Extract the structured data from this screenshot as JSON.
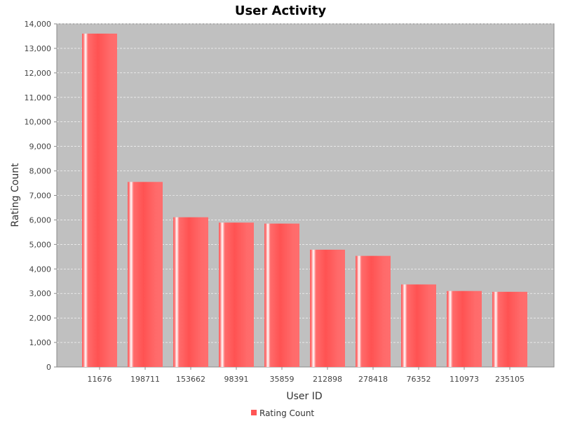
{
  "chart_data": {
    "type": "bar",
    "title": "User Activity",
    "xlabel": "User ID",
    "ylabel": "Rating Count",
    "categories": [
      "11676",
      "198711",
      "153662",
      "98391",
      "35859",
      "212898",
      "278418",
      "76352",
      "110973",
      "235105"
    ],
    "series": [
      {
        "name": "Rating Count",
        "values": [
          13602,
          7550,
          6109,
          5891,
          5850,
          4785,
          4533,
          3367,
          3100,
          3067
        ]
      }
    ],
    "ylim": [
      0,
      14000
    ],
    "yticks": [
      0,
      1000,
      2000,
      3000,
      4000,
      5000,
      6000,
      7000,
      8000,
      9000,
      10000,
      11000,
      12000,
      13000,
      14000
    ],
    "ytick_labels": [
      "0",
      "1,000",
      "2,000",
      "3,000",
      "4,000",
      "5,000",
      "6,000",
      "7,000",
      "8,000",
      "9,000",
      "10,000",
      "11,000",
      "12,000",
      "13,000",
      "14,000"
    ],
    "grid": true,
    "legend": "bottom-center",
    "colors": {
      "bar": "#ff5555",
      "plot_background": "#c0c0c0",
      "grid": "#ffffff"
    }
  }
}
